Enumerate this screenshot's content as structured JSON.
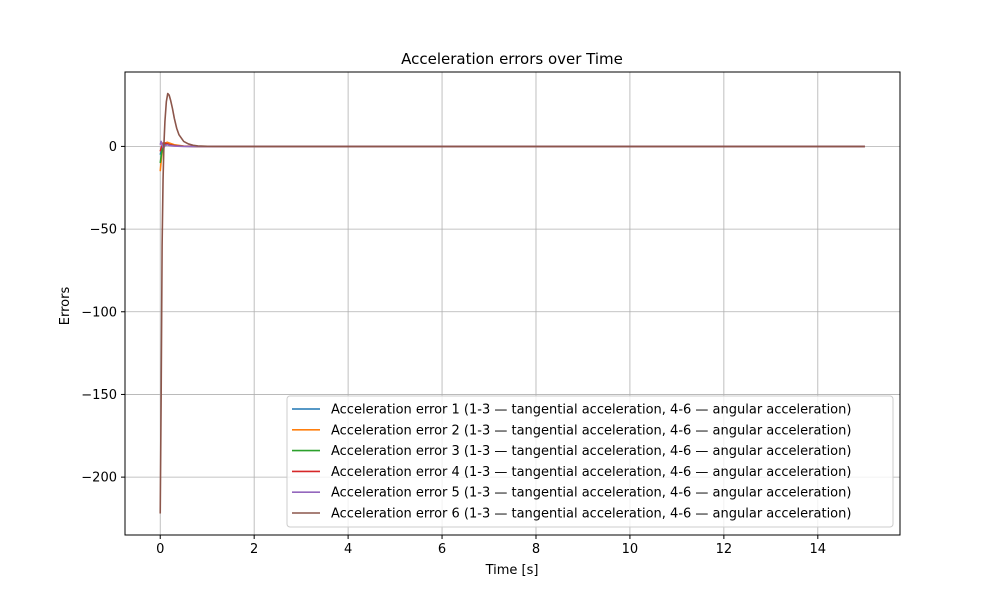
{
  "chart_data": {
    "type": "line",
    "title": "Acceleration errors over Time",
    "xlabel": "Time [s]",
    "ylabel": "Errors",
    "xlim": [
      -0.75,
      15.75
    ],
    "ylim": [
      -235,
      45
    ],
    "xticks": [
      0,
      2,
      4,
      6,
      8,
      10,
      12,
      14
    ],
    "yticks": [
      0,
      -50,
      -100,
      -150,
      -200
    ],
    "xtick_labels": [
      "0",
      "2",
      "4",
      "6",
      "8",
      "10",
      "12",
      "14"
    ],
    "ytick_labels": [
      "0",
      "−50",
      "−100",
      "−150",
      "−200"
    ],
    "grid": true,
    "legend_position": "lower-right",
    "series": [
      {
        "name": "Acceleration error 1 (1-3 — tangential acceleration, 4-6 — angular acceleration)",
        "color": "#1f77b4",
        "x": [
          0,
          0.03,
          0.06,
          0.1,
          0.15,
          0.2,
          0.3,
          0.5,
          0.8,
          1.2,
          15
        ],
        "y": [
          -5,
          -2,
          1,
          2,
          1.5,
          1,
          0.4,
          0.1,
          0,
          0,
          0
        ]
      },
      {
        "name": "Acceleration error 2 (1-3 — tangential acceleration, 4-6 — angular acceleration)",
        "color": "#ff7f0e",
        "x": [
          0,
          0.03,
          0.06,
          0.1,
          0.15,
          0.2,
          0.3,
          0.5,
          0.8,
          1.2,
          15
        ],
        "y": [
          -15,
          -6,
          0,
          2,
          2.5,
          2,
          1,
          0.2,
          0,
          0,
          0
        ]
      },
      {
        "name": "Acceleration error 3 (1-3 — tangential acceleration, 4-6 — angular acceleration)",
        "color": "#2ca02c",
        "x": [
          0,
          0.03,
          0.06,
          0.1,
          0.15,
          0.2,
          0.3,
          0.5,
          0.8,
          1.2,
          15
        ],
        "y": [
          -10,
          -4,
          0,
          1.5,
          1.5,
          1,
          0.5,
          0.1,
          0,
          0,
          0
        ]
      },
      {
        "name": "Acceleration error 4 (1-3 — tangential acceleration, 4-6 — angular acceleration)",
        "color": "#d62728",
        "x": [
          0,
          0.03,
          0.06,
          0.1,
          0.15,
          0.2,
          0.3,
          0.5,
          0.8,
          1.2,
          15
        ],
        "y": [
          -3,
          0,
          2,
          2,
          1.5,
          1,
          0.5,
          0.1,
          0,
          0,
          0
        ]
      },
      {
        "name": "Acceleration error 5 (1-3 — tangential acceleration, 4-6 — angular acceleration)",
        "color": "#9467bd",
        "x": [
          0,
          0.02,
          0.04,
          0.07,
          0.1,
          0.15,
          0.2,
          0.3,
          0.5,
          0.8,
          15
        ],
        "y": [
          1,
          3,
          1,
          -1,
          0.5,
          1,
          0.5,
          0.2,
          0,
          0,
          0
        ]
      },
      {
        "name": "Acceleration error 6 (1-3 — tangential acceleration, 4-6 — angular acceleration)",
        "color": "#8c564b",
        "x": [
          0,
          0.02,
          0.04,
          0.06,
          0.08,
          0.1,
          0.13,
          0.16,
          0.19,
          0.22,
          0.26,
          0.3,
          0.35,
          0.4,
          0.5,
          0.6,
          0.7,
          0.8,
          1.0,
          1.5,
          15
        ],
        "y": [
          -222,
          -150,
          -60,
          -20,
          2,
          15,
          27,
          32,
          31,
          28,
          23,
          17,
          11,
          7,
          3,
          1.5,
          0.7,
          0.3,
          0.1,
          0,
          0
        ]
      }
    ]
  }
}
